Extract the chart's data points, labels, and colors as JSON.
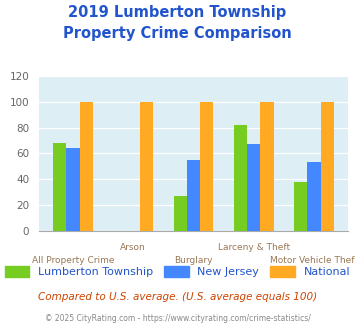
{
  "title_line1": "2019 Lumberton Township",
  "title_line2": "Property Crime Comparison",
  "categories": [
    "All Property Crime",
    "Arson",
    "Burglary",
    "Larceny & Theft",
    "Motor Vehicle Theft"
  ],
  "lumberton": [
    68,
    0,
    27,
    82,
    38
  ],
  "new_jersey": [
    64,
    0,
    55,
    67,
    53
  ],
  "national": [
    100,
    100,
    100,
    100,
    100
  ],
  "colors": {
    "lumberton": "#77cc22",
    "new_jersey": "#4488ff",
    "national": "#ffaa22"
  },
  "ylim": [
    0,
    120
  ],
  "yticks": [
    0,
    20,
    40,
    60,
    80,
    100,
    120
  ],
  "title_color": "#2255cc",
  "xlabel_color": "#997755",
  "plot_bg": "#ddeef5",
  "footer_note": "Compared to U.S. average. (U.S. average equals 100)",
  "footer_copy": "© 2025 CityRating.com - https://www.cityrating.com/crime-statistics/",
  "legend_labels": [
    "Lumberton Township",
    "New Jersey",
    "National"
  ],
  "bar_width": 0.22
}
